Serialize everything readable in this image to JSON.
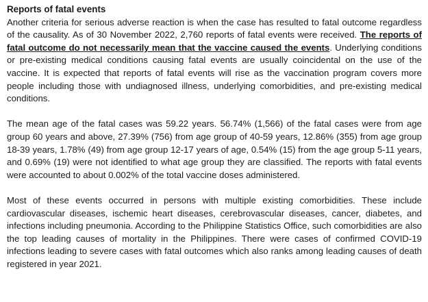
{
  "document": {
    "heading": "Reports of fatal events",
    "para1": {
      "run1": "Another criteria for serious adverse reaction is when the case has resulted to fatal outcome regardless of the causality. As of 30 November 2022, 2,760 reports of fatal events were received. ",
      "run2_emphasis": "The reports of fatal outcome do not necessarily mean that the vaccine caused the events",
      "run3": ". Underlying conditions or pre-existing medical conditions causing fatal events are usually coincidental on the use of the vaccine. It is expected that reports of fatal events will rise as the vaccination program covers more people including those with undiagnosed illness, underlying comorbidities, and pre-existing medical conditions."
    },
    "para2": "The mean age of the fatal cases was 59.22 years. 56.74% (1,566) of the fatal cases were from age group 60 years and above, 27.39% (756) from age group of 40-59 years, 12.86% (355) from age group 18-39 years, 1.78% (49) from age group 12-17 years of age, 0.54% (15) from the age group 5-11 years, and 0.69% (19) were not identified to what age group they are classified. The reports with fatal events were accounted to about 0.002% of the total vaccine doses administered.",
    "para3": "Most of these events occurred in persons with multiple existing comorbidities. These include cardiovascular diseases, ischemic heart diseases, cerebrovascular diseases, cancer, diabetes, and infections including pneumonia. According to the Philippine Statistics Office, such comorbidities are also the top leading causes of mortality in the Philippines. There were cases of confirmed COVID-19 infections leading to severe cases with fatal outcomes which also ranks among leading causes of death registered in year 2021."
  }
}
